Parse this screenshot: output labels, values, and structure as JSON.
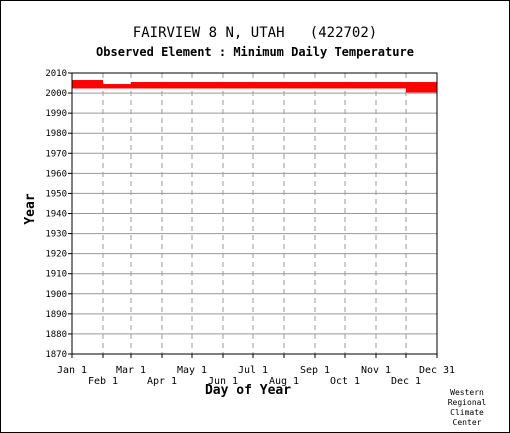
{
  "header": {
    "title": "FAIRVIEW 8 N, UTAH   (422702)",
    "subtitle": "Observed Element : Minimum Daily Temperature"
  },
  "credit": [
    "Western",
    "Regional",
    "Climate",
    "Center"
  ],
  "colors": {
    "data": "#ff0000",
    "grid_vertical": "#999999",
    "grid_horizontal": "#999999"
  },
  "chart_data": {
    "type": "bar",
    "xlabel": "Day of Year",
    "ylabel": "Year",
    "xlim": [
      1,
      366
    ],
    "ylim": [
      1870,
      2010
    ],
    "y_ticks": [
      1870,
      1880,
      1890,
      1900,
      1910,
      1920,
      1930,
      1940,
      1950,
      1960,
      1970,
      1980,
      1990,
      2000,
      2010
    ],
    "x_ticks": [
      {
        "label": "Jan 1",
        "day": 1,
        "row": 0
      },
      {
        "label": "Feb 1",
        "day": 32,
        "row": 1
      },
      {
        "label": "Mar 1",
        "day": 60,
        "row": 0
      },
      {
        "label": "Apr 1",
        "day": 91,
        "row": 1
      },
      {
        "label": "May 1",
        "day": 121,
        "row": 0
      },
      {
        "label": "Jun 1",
        "day": 152,
        "row": 1
      },
      {
        "label": "Jul 1",
        "day": 182,
        "row": 0
      },
      {
        "label": "Aug 1",
        "day": 213,
        "row": 1
      },
      {
        "label": "Sep 1",
        "day": 244,
        "row": 0
      },
      {
        "label": "Oct 1",
        "day": 274,
        "row": 1
      },
      {
        "label": "Nov 1",
        "day": 305,
        "row": 0
      },
      {
        "label": "Dec 1",
        "day": 335,
        "row": 1
      },
      {
        "label": "Dec 31",
        "day": 366,
        "row": 0
      }
    ],
    "records": [
      {
        "year": 2001,
        "start_day": 335,
        "end_day": 366
      },
      {
        "year": 2002,
        "start_day": 335,
        "end_day": 366
      },
      {
        "year": 2003,
        "start_day": 1,
        "end_day": 366
      },
      {
        "year": 2004,
        "start_day": 1,
        "end_day": 366
      },
      {
        "year": 2005,
        "start_day": 1,
        "end_day": 32
      },
      {
        "year": 2005,
        "start_day": 60,
        "end_day": 366
      },
      {
        "year": 2006,
        "start_day": 1,
        "end_day": 32
      }
    ]
  }
}
